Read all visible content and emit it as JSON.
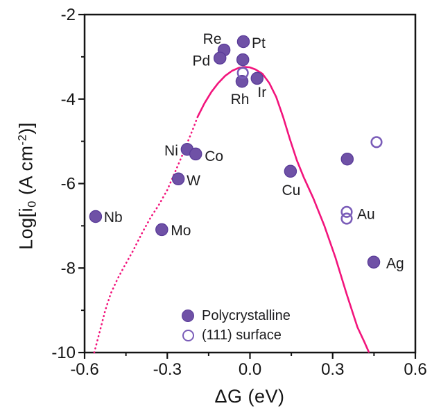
{
  "figure": {
    "background": "#ffffff",
    "axis_color": "#141414",
    "curve_color": "#f2147c",
    "marker_fill": "#6f51a6",
    "marker_edge": "#5a3c99",
    "open_marker_edge": "#7a5cb8",
    "label_color": "#1d1d1f"
  },
  "axes": {
    "x": {
      "label": "ΔG (eV)",
      "min": -0.6,
      "max": 0.6,
      "major_ticks": [
        -0.6,
        -0.3,
        0.0,
        0.3,
        0.6
      ],
      "tick_labels": [
        "-0.6",
        "-0.3",
        "0.0",
        "0.3",
        "0.6"
      ],
      "minor_ticks": [
        -0.45,
        -0.15,
        0.15,
        0.45
      ]
    },
    "y": {
      "label_parts": {
        "prefix": "Log[i",
        "sub": "0",
        "mid": " (A cm",
        "sup": "-2",
        "suffix": ")]"
      },
      "min": -10,
      "max": -2,
      "major_ticks": [
        -2,
        -4,
        -6,
        -8,
        -10
      ],
      "tick_labels": [
        "-2",
        "-4",
        "-6",
        "-8",
        "-10"
      ],
      "minor_ticks": [
        -3,
        -5,
        -7,
        -9
      ]
    }
  },
  "legend": {
    "items": [
      {
        "marker": "filled",
        "label": "Polycrystalline"
      },
      {
        "marker": "open",
        "label": "(111) surface"
      }
    ]
  },
  "chart_data": {
    "type": "scatter",
    "title": "",
    "xlabel": "ΔG (eV)",
    "ylabel": "Log[i0 (A cm-2)]",
    "xlim": [
      -0.6,
      0.6
    ],
    "ylim": [
      -10,
      -2
    ],
    "grid": false,
    "legend_position": "lower center-right inside",
    "series": [
      {
        "name": "Polycrystalline",
        "marker": "filled-circle",
        "points": [
          {
            "label": "Nb",
            "x": -0.56,
            "y": -6.78,
            "anchor": "start",
            "dx": 12,
            "dy": 8
          },
          {
            "label": "Mo",
            "x": -0.32,
            "y": -7.09,
            "anchor": "start",
            "dx": 13,
            "dy": 8
          },
          {
            "label": "W",
            "x": -0.26,
            "y": -5.89,
            "anchor": "start",
            "dx": 12,
            "dy": 9
          },
          {
            "label": "Ni",
            "x": -0.228,
            "y": -5.19,
            "anchor": "end",
            "dx": -13,
            "dy": 9
          },
          {
            "label": "Co",
            "x": -0.197,
            "y": -5.3,
            "anchor": "start",
            "dx": 13,
            "dy": 10
          },
          {
            "label": "Re",
            "x": -0.094,
            "y": -2.84,
            "anchor": "middle",
            "dx": -17,
            "dy": -9
          },
          {
            "label": "Pd",
            "x": -0.109,
            "y": -3.03,
            "anchor": "end",
            "dx": -14,
            "dy": 11
          },
          {
            "label": "Pt",
            "x": -0.024,
            "y": -2.64,
            "anchor": "start",
            "dx": 12,
            "dy": 9
          },
          {
            "label": "",
            "x": -0.026,
            "y": -3.07
          },
          {
            "label": "Rh",
            "x": -0.029,
            "y": -3.58,
            "anchor": "middle",
            "dx": -3,
            "dy": 33
          },
          {
            "label": "Ir",
            "x": 0.026,
            "y": -3.51,
            "anchor": "middle",
            "dx": 7,
            "dy": 27
          },
          {
            "label": "Cu",
            "x": 0.147,
            "y": -5.71,
            "anchor": "middle",
            "dx": 1,
            "dy": 34
          },
          {
            "label": "",
            "x": 0.353,
            "y": -5.42
          },
          {
            "label": "Ag",
            "x": 0.449,
            "y": -7.86,
            "anchor": "start",
            "dx": 18,
            "dy": 9
          }
        ]
      },
      {
        "name": "(111) surface",
        "marker": "open-circle",
        "points": [
          {
            "label": "",
            "x": -0.026,
            "y": -3.38
          },
          {
            "label": "",
            "x": 0.459,
            "y": -5.02
          },
          {
            "label": "Au",
            "x": 0.351,
            "y": -6.67,
            "anchor": "start",
            "dx": 15,
            "dy": 10
          },
          {
            "label": "",
            "x": 0.351,
            "y": -6.83
          }
        ]
      }
    ],
    "curve": {
      "description": "volcano trend line, solid near apex and on right branch, dotted on lower left branch",
      "solid": [
        [
          -0.19,
          -4.42
        ],
        [
          -0.165,
          -4.1
        ],
        [
          -0.14,
          -3.83
        ],
        [
          -0.115,
          -3.62
        ],
        [
          -0.09,
          -3.45
        ],
        [
          -0.065,
          -3.33
        ],
        [
          -0.04,
          -3.26
        ],
        [
          -0.02,
          -3.24
        ],
        [
          0.0,
          -3.25
        ],
        [
          0.02,
          -3.3
        ],
        [
          0.045,
          -3.4
        ],
        [
          0.07,
          -3.62
        ],
        [
          0.095,
          -3.95
        ],
        [
          0.12,
          -4.42
        ],
        [
          0.145,
          -4.95
        ],
        [
          0.17,
          -5.45
        ],
        [
          0.195,
          -5.85
        ],
        [
          0.23,
          -6.35
        ],
        [
          0.27,
          -7.0
        ],
        [
          0.31,
          -7.75
        ],
        [
          0.35,
          -8.6
        ],
        [
          0.39,
          -9.4
        ],
        [
          0.415,
          -9.75
        ],
        [
          0.432,
          -10.0
        ]
      ],
      "dotted": [
        [
          -0.565,
          -10.0
        ],
        [
          -0.545,
          -9.5
        ],
        [
          -0.525,
          -9.0
        ],
        [
          -0.505,
          -8.6
        ],
        [
          -0.48,
          -8.25
        ],
        [
          -0.455,
          -7.95
        ],
        [
          -0.425,
          -7.6
        ],
        [
          -0.39,
          -7.15
        ],
        [
          -0.36,
          -6.8
        ],
        [
          -0.33,
          -6.5
        ],
        [
          -0.3,
          -6.15
        ],
        [
          -0.27,
          -5.7
        ],
        [
          -0.245,
          -5.32
        ],
        [
          -0.222,
          -4.95
        ],
        [
          -0.205,
          -4.68
        ],
        [
          -0.19,
          -4.42
        ]
      ]
    }
  }
}
